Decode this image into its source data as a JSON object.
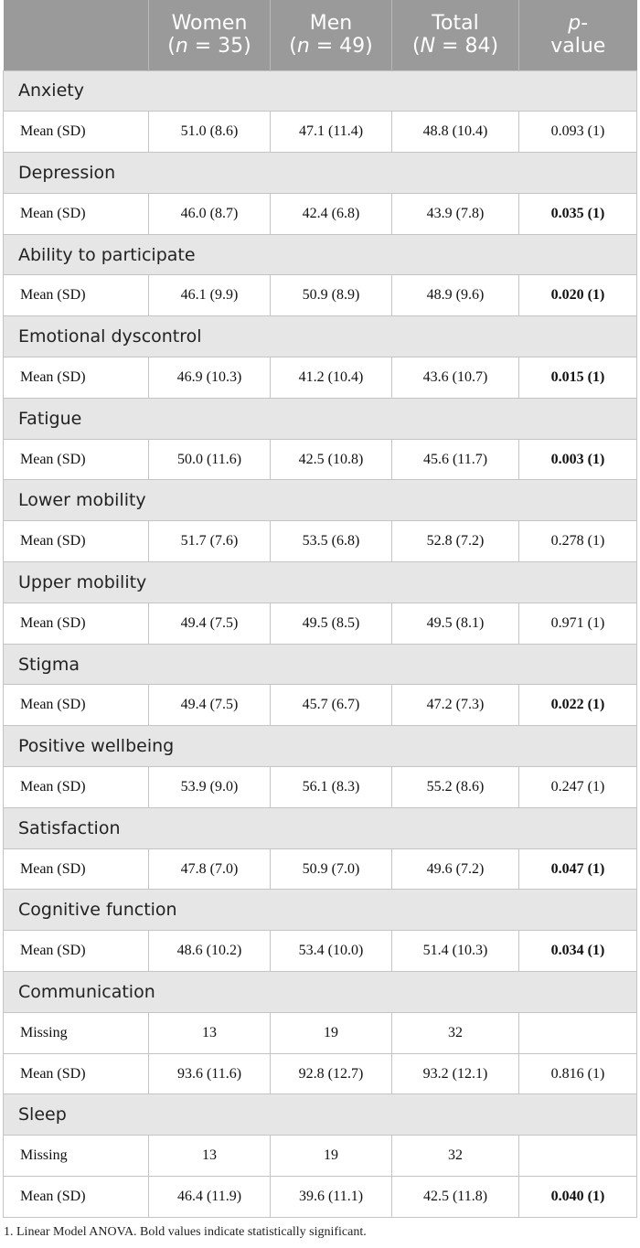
{
  "table": {
    "header": [
      [
        [
          {
            "t": "Women"
          }
        ],
        [
          {
            "t": "("
          },
          {
            "t": "n",
            "i": true
          },
          {
            "t": " = 35)"
          }
        ]
      ],
      [
        [
          {
            "t": "Men"
          }
        ],
        [
          {
            "t": "("
          },
          {
            "t": "n",
            "i": true
          },
          {
            "t": " = 49)"
          }
        ]
      ],
      [
        [
          {
            "t": "Total"
          }
        ],
        [
          {
            "t": "("
          },
          {
            "t": "N",
            "i": true
          },
          {
            "t": " = 84)"
          }
        ]
      ],
      [
        [
          {
            "t": "p",
            "i": true
          },
          {
            "t": "-"
          }
        ],
        [
          {
            "t": "value"
          }
        ]
      ]
    ],
    "sections": [
      {
        "title": "Anxiety",
        "rows": [
          {
            "cells": [
              "Mean (SD)",
              "51.0 (8.6)",
              "47.1 (11.4)",
              "48.8 (10.4)",
              "0.093 (1)"
            ],
            "bold": false
          }
        ]
      },
      {
        "title": "Depression",
        "rows": [
          {
            "cells": [
              "Mean (SD)",
              "46.0 (8.7)",
              "42.4 (6.8)",
              "43.9 (7.8)",
              "0.035 (1)"
            ],
            "bold": true
          }
        ]
      },
      {
        "title": "Ability to participate",
        "rows": [
          {
            "cells": [
              "Mean (SD)",
              "46.1 (9.9)",
              "50.9 (8.9)",
              "48.9 (9.6)",
              "0.020 (1)"
            ],
            "bold": true
          }
        ]
      },
      {
        "title": "Emotional dyscontrol",
        "rows": [
          {
            "cells": [
              "Mean (SD)",
              "46.9 (10.3)",
              "41.2 (10.4)",
              "43.6 (10.7)",
              "0.015 (1)"
            ],
            "bold": true
          }
        ]
      },
      {
        "title": "Fatigue",
        "rows": [
          {
            "cells": [
              "Mean (SD)",
              "50.0 (11.6)",
              "42.5 (10.8)",
              "45.6 (11.7)",
              "0.003 (1)"
            ],
            "bold": true
          }
        ]
      },
      {
        "title": "Lower mobility",
        "rows": [
          {
            "cells": [
              "Mean (SD)",
              "51.7 (7.6)",
              "53.5 (6.8)",
              "52.8 (7.2)",
              "0.278 (1)"
            ],
            "bold": false
          }
        ]
      },
      {
        "title": "Upper mobility",
        "rows": [
          {
            "cells": [
              "Mean (SD)",
              "49.4 (7.5)",
              "49.5 (8.5)",
              "49.5 (8.1)",
              "0.971 (1)"
            ],
            "bold": false
          }
        ]
      },
      {
        "title": "Stigma",
        "rows": [
          {
            "cells": [
              "Mean (SD)",
              "49.4 (7.5)",
              "45.7 (6.7)",
              "47.2 (7.3)",
              "0.022 (1)"
            ],
            "bold": true
          }
        ]
      },
      {
        "title": "Positive wellbeing",
        "rows": [
          {
            "cells": [
              "Mean (SD)",
              "53.9 (9.0)",
              "56.1 (8.3)",
              "55.2 (8.6)",
              "0.247 (1)"
            ],
            "bold": false
          }
        ]
      },
      {
        "title": "Satisfaction",
        "rows": [
          {
            "cells": [
              "Mean (SD)",
              "47.8 (7.0)",
              "50.9 (7.0)",
              "49.6 (7.2)",
              "0.047 (1)"
            ],
            "bold": true
          }
        ]
      },
      {
        "title": "Cognitive function",
        "rows": [
          {
            "cells": [
              "Mean (SD)",
              "48.6 (10.2)",
              "53.4 (10.0)",
              "51.4 (10.3)",
              "0.034 (1)"
            ],
            "bold": true
          }
        ]
      },
      {
        "title": "Communication",
        "rows": [
          {
            "cells": [
              "Missing",
              "13",
              "19",
              "32",
              null
            ],
            "bold": false
          },
          {
            "cells": [
              "Mean (SD)",
              "93.6 (11.6)",
              "92.8 (12.7)",
              "93.2 (12.1)",
              "0.816 (1)"
            ],
            "bold": false
          }
        ]
      },
      {
        "title": "Sleep",
        "rows": [
          {
            "cells": [
              "Missing",
              "13",
              "19",
              "32",
              null
            ],
            "bold": false
          },
          {
            "cells": [
              "Mean (SD)",
              "46.4 (11.9)",
              "39.6 (11.1)",
              "42.5 (11.8)",
              "0.040 (1)"
            ],
            "bold": true
          }
        ]
      }
    ]
  },
  "footnote": "1. Linear Model ANOVA. Bold values indicate statistically significant."
}
